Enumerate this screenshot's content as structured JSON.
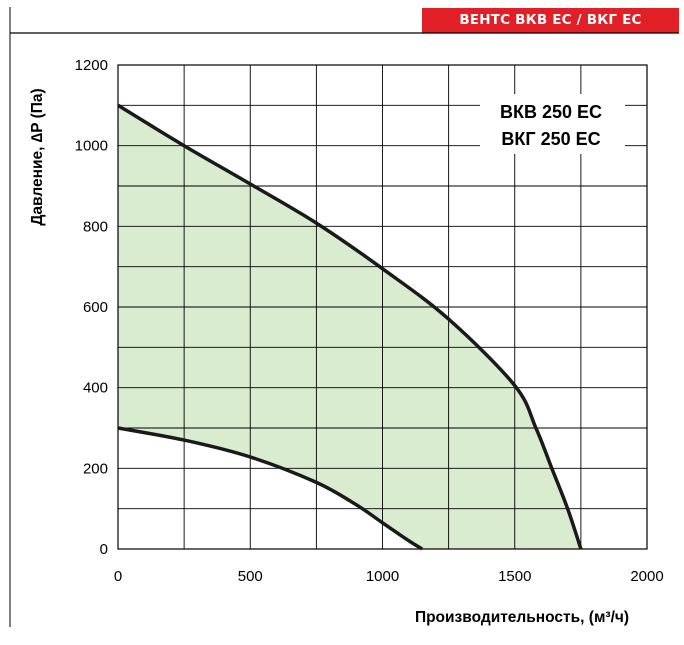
{
  "header": {
    "series_badge": "ВЕНТС ВКВ ЕС / ВКГ ЕС",
    "badge_color": "#e01f26"
  },
  "chart_data": {
    "type": "area",
    "xlabel": "Производительность, (м³/ч)",
    "ylabel": "Давление, ∆P (Па)",
    "xlim": [
      0,
      2000
    ],
    "ylim": [
      0,
      1200
    ],
    "x_ticks": [
      0,
      500,
      1000,
      1500,
      2000
    ],
    "y_ticks": [
      0,
      200,
      400,
      600,
      800,
      1000,
      1200
    ],
    "x_tick_labels": [
      "0",
      "500",
      "1000",
      "1500",
      "2000"
    ],
    "y_tick_labels": [
      "0",
      "200",
      "400",
      "600",
      "800",
      "1000",
      "1200"
    ],
    "grid": true,
    "grid_minor_step": {
      "x": 250,
      "y": 100
    },
    "fill_color": "#d9ecd0",
    "series": [
      {
        "role": "upper",
        "points": [
          [
            0,
            1100
          ],
          [
            250,
            1000
          ],
          [
            500,
            905
          ],
          [
            750,
            808
          ],
          [
            1000,
            695
          ],
          [
            1250,
            570
          ],
          [
            1500,
            405
          ],
          [
            1580,
            300
          ],
          [
            1640,
            200
          ],
          [
            1700,
            100
          ],
          [
            1750,
            0
          ]
        ]
      },
      {
        "role": "lower",
        "points": [
          [
            0,
            300
          ],
          [
            250,
            270
          ],
          [
            500,
            228
          ],
          [
            750,
            165
          ],
          [
            900,
            110
          ],
          [
            1000,
            65
          ],
          [
            1100,
            20
          ],
          [
            1150,
            0
          ]
        ]
      }
    ],
    "annotations": [
      "ВКВ 250 ЕС",
      "ВКГ 250 ЕС"
    ]
  }
}
